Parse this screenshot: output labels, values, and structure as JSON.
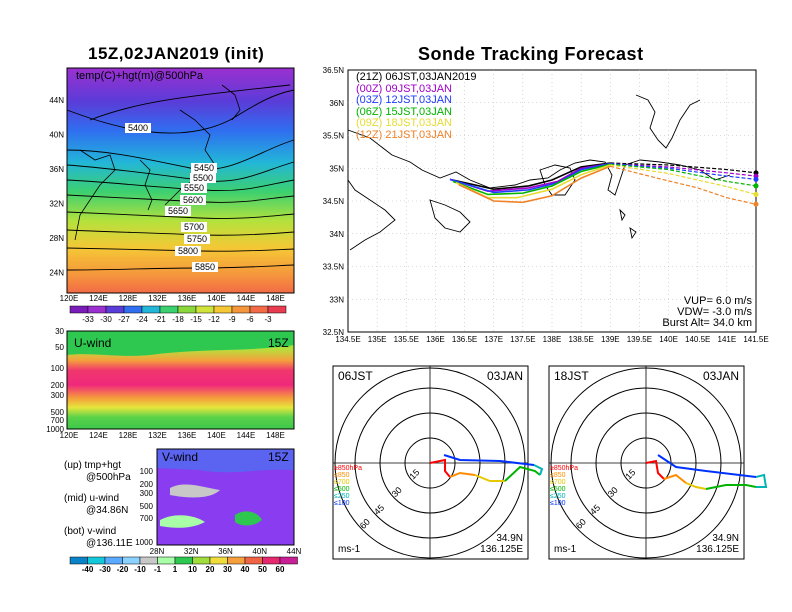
{
  "left": {
    "title": "15Z,02JAN2019 (init)",
    "map_label": "temp(C)+hgt(m)@500hPa",
    "lat_labels": [
      "44N",
      "40N",
      "36N",
      "32N",
      "28N",
      "24N"
    ],
    "lon_labels": [
      "120E",
      "124E",
      "128E",
      "132E",
      "136E",
      "140E",
      "144E",
      "148E"
    ],
    "contour_labels": [
      "5400",
      "5450",
      "5500",
      "5550",
      "5600",
      "5650",
      "5700",
      "5750",
      "5800",
      "5850"
    ],
    "temp_scale": [
      "-33",
      "-30",
      "-27",
      "-24",
      "-21",
      "-18",
      "-15",
      "-12",
      "-9",
      "-6",
      "-3"
    ],
    "uwind_label": "U-wind",
    "uwind_time": "15Z",
    "pressure_labels": [
      "30",
      "50",
      "100",
      "200",
      "300",
      "500",
      "700",
      "1000"
    ],
    "vwind_label": "V-wind",
    "vwind_time": "15Z",
    "vwind_lat_labels": [
      "28N",
      "32N",
      "36N",
      "40N",
      "44N"
    ],
    "vwind_p_labels": [
      "100",
      "200",
      "300",
      "500",
      "700",
      "1000"
    ],
    "wind_scale": [
      "-40",
      "-30",
      "-20",
      "-10",
      "-1",
      "1",
      "10",
      "20",
      "30",
      "40",
      "50",
      "60"
    ],
    "legend_up_1": "(up) tmp+hgt",
    "legend_up_2": "@500hPa",
    "legend_mid_1": "(mid) u-wind",
    "legend_mid_2": "@34.86N",
    "legend_bot_1": "(bot) v-wind",
    "legend_bot_2": "@136.11E"
  },
  "right": {
    "title": "Sonde Tracking Forecast",
    "runs": [
      {
        "label": "(21Z)  06JST,03JAN2019",
        "color": "#000000"
      },
      {
        "label": "(00Z)  09JST,03JAN",
        "color": "#a000c8"
      },
      {
        "label": "(03Z)  12JST,03JAN",
        "color": "#1e3cff"
      },
      {
        "label": "(06Z)  15JST,03JAN",
        "color": "#00b400"
      },
      {
        "label": "(09Z)  18JST,03JAN",
        "color": "#e6dc32"
      },
      {
        "label": "(12Z)  21JST,03JAN",
        "color": "#f08228"
      }
    ],
    "lat_labels": [
      "36.5N",
      "36N",
      "35.5N",
      "35N",
      "34.5N",
      "34N",
      "33.5N",
      "33N",
      "32.5N"
    ],
    "lon_labels": [
      "134.5E",
      "135E",
      "135.5E",
      "136E",
      "136.5E",
      "137E",
      "137.5E",
      "138E",
      "138.5E",
      "139E",
      "139.5E",
      "140E",
      "140.5E",
      "141E",
      "141.5E"
    ],
    "vup": "VUP=  6.0  m/s",
    "vdw": "VDW=  -3.0  m/s",
    "burst": "Burst Alt=  34.0  km",
    "hodo1_time": "06JST",
    "hodo1_date": "03JAN",
    "hodo2_time": "18JST",
    "hodo2_date": "03JAN",
    "ring_labels": [
      "15",
      "30",
      "45",
      "60"
    ],
    "pressure_legend": [
      {
        "label": "≥850hPa",
        "color": "#ff0000"
      },
      {
        "label": "≤850",
        "color": "#ff8c00"
      },
      {
        "label": "≤700",
        "color": "#e6c800"
      },
      {
        "label": "≤500",
        "color": "#00b400"
      },
      {
        "label": "≤250",
        "color": "#00b4b4"
      },
      {
        "label": "≤100",
        "color": "#0032ff"
      }
    ],
    "hodo_lat": "34.9N",
    "hodo_lon": "136.125E",
    "units": "ms-1"
  },
  "chart_data": [
    {
      "type": "heatmap",
      "title": "15Z,02JAN2019 (init)",
      "label": "temp(C)+hgt(m)@500hPa",
      "contours": [
        5400,
        5450,
        5500,
        5550,
        5600,
        5650,
        5700,
        5750,
        5800,
        5850
      ],
      "colorbar": [
        -33,
        -30,
        -27,
        -24,
        -21,
        -18,
        -15,
        -12,
        -9,
        -6,
        -3
      ]
    },
    {
      "type": "heatmap",
      "label": "U-wind",
      "levels": [
        30,
        50,
        100,
        200,
        300,
        500,
        700,
        1000
      ]
    },
    {
      "type": "heatmap",
      "label": "V-wind",
      "colorbar": [
        -40,
        -30,
        -20,
        -10,
        -1,
        1,
        10,
        20,
        30,
        40,
        50,
        60
      ]
    },
    {
      "type": "line",
      "title": "Sonde Tracking Forecast",
      "xlim": [
        134.5,
        141.5
      ],
      "ylim": [
        32.5,
        36.5
      ],
      "series": [
        {
          "name": "(21Z)  06JST,03JAN2019",
          "x": [
            136.25,
            137.0,
            137.6,
            138.0,
            138.5,
            139.0,
            140.0,
            141.0,
            141.5
          ],
          "y": [
            34.83,
            34.68,
            34.73,
            34.82,
            35.02,
            35.08,
            35.05,
            34.98,
            34.93
          ]
        },
        {
          "name": "(00Z)  09JST,03JAN",
          "x": [
            136.25,
            136.9,
            137.6,
            138.1,
            138.5,
            139.0,
            140.0,
            141.0,
            141.5
          ],
          "y": [
            34.83,
            34.65,
            34.7,
            34.8,
            35.0,
            35.07,
            35.02,
            34.93,
            34.88
          ]
        },
        {
          "name": "(03Z)  12JST,03JAN",
          "x": [
            136.25,
            137.0,
            137.6,
            138.1,
            138.5,
            139.0,
            140.0,
            141.0,
            141.5
          ],
          "y": [
            34.83,
            34.63,
            34.67,
            34.78,
            34.98,
            35.07,
            35.0,
            34.88,
            34.83
          ]
        },
        {
          "name": "(06Z)  15JST,03JAN",
          "x": [
            136.3,
            136.9,
            137.5,
            138.0,
            138.5,
            139.0,
            140.0,
            141.0,
            141.5
          ],
          "y": [
            34.8,
            34.6,
            34.62,
            34.73,
            34.95,
            35.06,
            34.98,
            34.8,
            34.73
          ]
        },
        {
          "name": "(09Z)  18JST,03JAN",
          "x": [
            136.35,
            136.9,
            137.4,
            138.0,
            138.5,
            139.0,
            140.0,
            141.0,
            141.5
          ],
          "y": [
            34.78,
            34.55,
            34.55,
            34.68,
            34.9,
            35.05,
            34.92,
            34.72,
            34.6
          ]
        },
        {
          "name": "(12Z)  21JST,03JAN",
          "x": [
            136.4,
            137.0,
            137.5,
            138.0,
            138.5,
            139.0,
            139.8,
            140.5,
            141.0,
            141.5
          ],
          "y": [
            34.75,
            34.5,
            34.48,
            34.58,
            34.85,
            35.03,
            34.85,
            34.7,
            34.55,
            34.45
          ]
        }
      ]
    }
  ]
}
